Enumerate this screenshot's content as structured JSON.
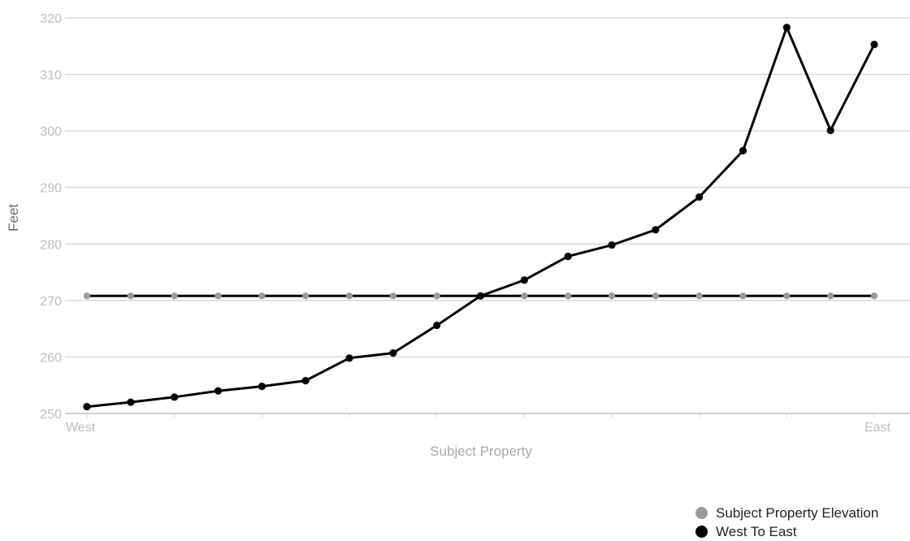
{
  "chart_data": {
    "type": "line",
    "title": "",
    "xlabel": "Subject Property",
    "ylabel": "Feet",
    "ylim": [
      250,
      320
    ],
    "yticks": [
      250,
      260,
      270,
      280,
      290,
      300,
      310,
      320
    ],
    "x_labels": {
      "start": "West",
      "end": "East"
    },
    "grid": true,
    "legend_position": "bottom-right",
    "series": [
      {
        "name": "Subject Property Elevation",
        "color": "#9a9a9a",
        "values": [
          270.8,
          270.8,
          270.8,
          270.8,
          270.8,
          270.8,
          270.8,
          270.8,
          270.8,
          270.8,
          270.8,
          270.8,
          270.8,
          270.8,
          270.8,
          270.8,
          270.8,
          270.8,
          270.8
        ]
      },
      {
        "name": "West To East",
        "color": "#000000",
        "values": [
          251.2,
          252,
          252.9,
          254,
          254.8,
          255.8,
          259.8,
          260.7,
          265.6,
          270.8,
          273.6,
          277.8,
          279.8,
          282.5,
          288.3,
          296.5,
          318.3,
          300.1,
          315.3
        ]
      }
    ]
  },
  "legend": {
    "items": [
      "Subject Property Elevation",
      "West To East"
    ]
  }
}
